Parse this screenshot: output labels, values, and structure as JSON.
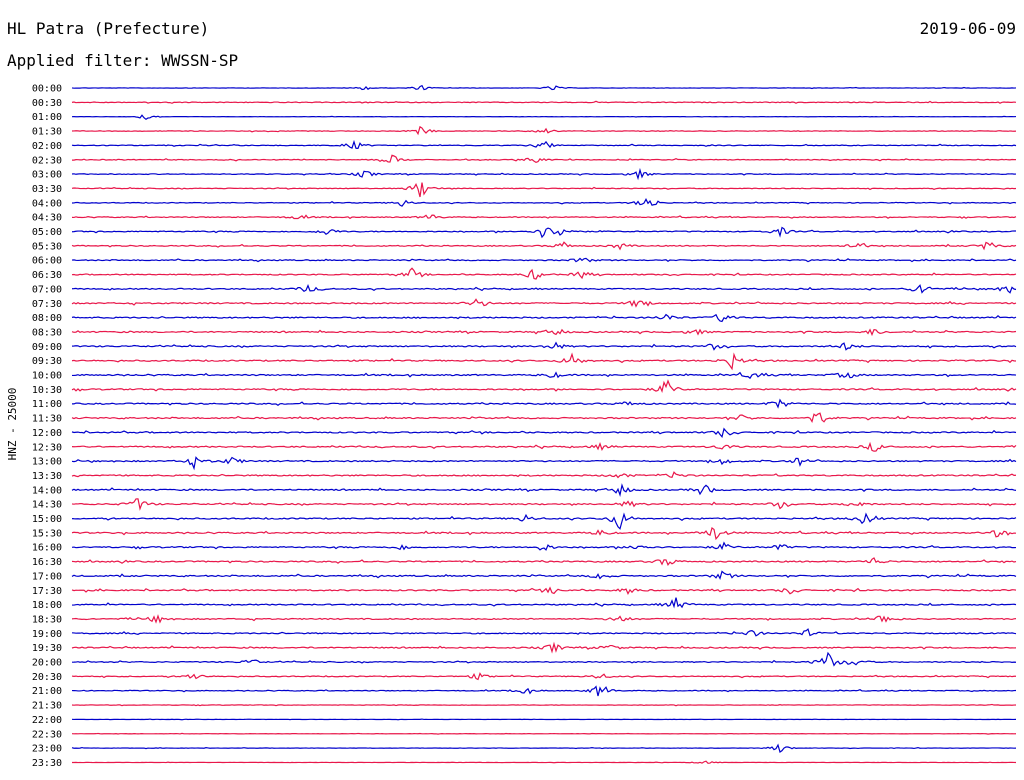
{
  "header": {
    "station": "HL Patra (Prefecture)",
    "date": "2019-06-09",
    "filter": "Applied filter: WWSSN-SP"
  },
  "chart_data": {
    "type": "line",
    "chart_kind": "helicorder",
    "ylabel": "HNZ - 25000",
    "trace_colors": [
      "#0000cc",
      "#e8174a"
    ],
    "rows": [
      "00:00",
      "00:30",
      "01:00",
      "01:30",
      "02:00",
      "02:30",
      "03:00",
      "03:30",
      "04:00",
      "04:30",
      "05:00",
      "05:30",
      "06:00",
      "06:30",
      "07:00",
      "07:30",
      "08:00",
      "08:30",
      "09:00",
      "09:30",
      "10:00",
      "10:30",
      "11:00",
      "11:30",
      "12:00",
      "12:30",
      "13:00",
      "13:30",
      "14:00",
      "14:30",
      "15:00",
      "15:30",
      "16:00",
      "16:30",
      "17:00",
      "17:30",
      "18:00",
      "18:30",
      "19:00",
      "19:30",
      "20:00",
      "20:30",
      "21:00",
      "21:30",
      "22:00",
      "22:30",
      "23:00",
      "23:30"
    ],
    "noise_level": [
      0.3,
      0.6,
      0.2,
      0.5,
      0.6,
      0.6,
      0.6,
      0.6,
      0.6,
      0.7,
      0.8,
      0.8,
      0.8,
      0.8,
      0.9,
      1.0,
      1.0,
      1.0,
      1.0,
      1.0,
      1.0,
      1.0,
      1.0,
      1.0,
      1.0,
      1.0,
      1.0,
      1.0,
      1.0,
      1.0,
      1.0,
      1.0,
      1.0,
      1.0,
      1.0,
      1.0,
      0.9,
      0.9,
      0.9,
      0.9,
      0.8,
      0.7,
      0.6,
      0.4,
      0.2,
      0.2,
      0.3,
      0.2
    ],
    "events": [
      [
        [
          0.31,
          0.3
        ],
        [
          0.37,
          0.4
        ],
        [
          0.51,
          0.4
        ]
      ],
      [],
      [
        [
          0.08,
          0.6
        ]
      ],
      [
        [
          0.37,
          0.7
        ],
        [
          0.5,
          0.5
        ]
      ],
      [
        [
          0.3,
          0.7
        ],
        [
          0.5,
          0.7
        ]
      ],
      [
        [
          0.34,
          0.7
        ],
        [
          0.49,
          0.5
        ]
      ],
      [
        [
          0.31,
          0.6
        ],
        [
          0.6,
          0.7
        ]
      ],
      [
        [
          0.37,
          1.6
        ]
      ],
      [
        [
          0.35,
          0.6
        ],
        [
          0.61,
          1.2
        ]
      ],
      [
        [
          0.24,
          0.4
        ],
        [
          0.38,
          0.5
        ]
      ],
      [
        [
          0.27,
          0.6
        ],
        [
          0.5,
          1.0
        ],
        [
          0.52,
          0.9
        ],
        [
          0.75,
          0.7
        ]
      ],
      [
        [
          0.52,
          0.6
        ],
        [
          0.58,
          0.5
        ],
        [
          0.83,
          0.7
        ],
        [
          0.97,
          0.7
        ]
      ],
      [
        [
          0.54,
          0.5
        ]
      ],
      [
        [
          0.36,
          0.8
        ],
        [
          0.49,
          0.9
        ],
        [
          0.54,
          0.6
        ]
      ],
      [
        [
          0.25,
          0.6
        ],
        [
          0.9,
          1.0
        ],
        [
          0.99,
          0.9
        ]
      ],
      [
        [
          0.43,
          0.8
        ],
        [
          0.6,
          0.8
        ]
      ],
      [
        [
          0.63,
          0.6
        ],
        [
          0.69,
          0.8
        ]
      ],
      [
        [
          0.51,
          0.6
        ],
        [
          0.66,
          0.5
        ],
        [
          0.85,
          0.6
        ]
      ],
      [
        [
          0.51,
          0.7
        ],
        [
          0.68,
          0.5
        ],
        [
          0.82,
          0.6
        ]
      ],
      [
        [
          0.53,
          1.1
        ],
        [
          0.7,
          1.3
        ]
      ],
      [
        [
          0.51,
          0.5
        ],
        [
          0.72,
          0.7
        ],
        [
          0.82,
          0.6
        ]
      ],
      [
        [
          0.63,
          1.4
        ]
      ],
      [
        [
          0.59,
          0.4
        ],
        [
          0.75,
          0.7
        ]
      ],
      [
        [
          0.71,
          0.5
        ],
        [
          0.79,
          1.3
        ]
      ],
      [
        [
          0.69,
          0.7
        ]
      ],
      [
        [
          0.56,
          0.4
        ],
        [
          0.69,
          0.5
        ],
        [
          0.85,
          0.7
        ]
      ],
      [
        [
          0.13,
          0.9
        ],
        [
          0.17,
          0.6
        ],
        [
          0.69,
          0.5
        ],
        [
          0.77,
          0.6
        ]
      ],
      [
        [
          0.58,
          0.5
        ],
        [
          0.64,
          0.5
        ]
      ],
      [
        [
          0.58,
          0.9
        ],
        [
          0.67,
          0.8
        ]
      ],
      [
        [
          0.07,
          1.0
        ],
        [
          0.59,
          0.5
        ],
        [
          0.75,
          0.6
        ],
        [
          0.83,
          0.6
        ]
      ],
      [
        [
          0.48,
          0.6
        ],
        [
          0.58,
          1.6
        ],
        [
          0.84,
          1.0
        ]
      ],
      [
        [
          0.56,
          0.5
        ],
        [
          0.68,
          1.3
        ],
        [
          0.98,
          0.6
        ]
      ],
      [
        [
          0.35,
          0.4
        ],
        [
          0.5,
          0.6
        ],
        [
          0.6,
          0.6
        ],
        [
          0.69,
          0.6
        ],
        [
          0.75,
          0.5
        ]
      ],
      [
        [
          0.63,
          0.7
        ],
        [
          0.85,
          0.6
        ]
      ],
      [
        [
          0.56,
          0.5
        ],
        [
          0.69,
          0.7
        ]
      ],
      [
        [
          0.51,
          0.5
        ],
        [
          0.59,
          0.5
        ],
        [
          0.76,
          0.5
        ]
      ],
      [
        [
          0.64,
          1.0
        ]
      ],
      [
        [
          0.09,
          0.6
        ],
        [
          0.58,
          0.6
        ],
        [
          0.86,
          0.8
        ]
      ],
      [
        [
          0.72,
          0.6
        ],
        [
          0.78,
          0.6
        ]
      ],
      [
        [
          0.51,
          0.7
        ],
        [
          0.57,
          0.5
        ]
      ],
      [
        [
          0.19,
          0.5
        ],
        [
          0.8,
          1.6
        ],
        [
          0.83,
          0.6
        ]
      ],
      [
        [
          0.13,
          0.6
        ],
        [
          0.43,
          0.5
        ],
        [
          0.56,
          0.5
        ]
      ],
      [
        [
          0.48,
          0.5
        ],
        [
          0.56,
          1.2
        ]
      ],
      [],
      [],
      [],
      [
        [
          0.75,
          0.7
        ]
      ],
      [
        [
          0.67,
          0.3
        ]
      ]
    ]
  }
}
